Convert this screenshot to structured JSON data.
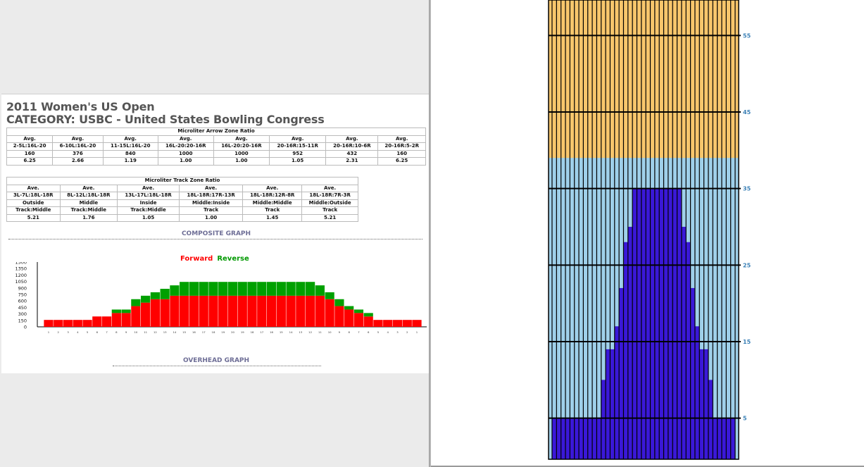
{
  "page": {
    "title": "2011 Women's US Open",
    "category": "CATEGORY: USBC - United States Bowling Congress"
  },
  "arrow_table": {
    "caption": "Microliter Arrow Zone Ratio",
    "columns": [
      {
        "head1": "Avg.",
        "head2": "2-5L:16L-20",
        "value": "160",
        "ratio": "6.25"
      },
      {
        "head1": "Avg.",
        "head2": "6-10L:16L-20",
        "value": "376",
        "ratio": "2.66"
      },
      {
        "head1": "Avg.",
        "head2": "11-15L:16L-20",
        "value": "840",
        "ratio": "1.19"
      },
      {
        "head1": "Avg.",
        "head2": "16L-20:20-16R",
        "value": "1000",
        "ratio": "1.00"
      },
      {
        "head1": "Avg.",
        "head2": "16L-20:20-16R",
        "value": "1000",
        "ratio": "1.00"
      },
      {
        "head1": "Avg.",
        "head2": "20-16R:15-11R",
        "value": "952",
        "ratio": "1.05"
      },
      {
        "head1": "Avg.",
        "head2": "20-16R:10-6R",
        "value": "432",
        "ratio": "2.31"
      },
      {
        "head1": "Avg.",
        "head2": "20-16R:5-2R",
        "value": "160",
        "ratio": "6.25"
      }
    ]
  },
  "track_table": {
    "caption": "Microliter Track Zone Ratio",
    "columns": [
      {
        "head1": "Ave.",
        "head2": "3L-7L:18L-18R",
        "zone1": "Outside",
        "zone2": "Track:Middle",
        "ratio": "5.21"
      },
      {
        "head1": "Ave.",
        "head2": "8L-12L:18L-18R",
        "zone1": "Middle",
        "zone2": "Track:Middle",
        "ratio": "1.76"
      },
      {
        "head1": "Ave.",
        "head2": "13L-17L:18L-18R",
        "zone1": "Inside",
        "zone2": "Track:Middle",
        "ratio": "1.05"
      },
      {
        "head1": "Ave.",
        "head2": "18L-18R:17R-13R",
        "zone1": "Middle:Inside",
        "zone2": "Track",
        "ratio": "1.00"
      },
      {
        "head1": "Ave.",
        "head2": "18L-18R:12R-8R",
        "zone1": "Middle:Middle",
        "zone2": "Track",
        "ratio": "1.45"
      },
      {
        "head1": "Ave.",
        "head2": "18L-18R:7R-3R",
        "zone1": "Middle:Outside",
        "zone2": "Track",
        "ratio": "5.21"
      }
    ]
  },
  "sections": {
    "composite": "COMPOSITE GRAPH",
    "overhead": "OVERHEAD GRAPH"
  },
  "legend": {
    "forward": "Forward",
    "reverse": "Reverse",
    "forward_color": "#ff0000",
    "reverse_color": "#00a000"
  },
  "chart_data": [
    {
      "type": "bar",
      "stacked": true,
      "categories": [
        "1",
        "2",
        "3",
        "4",
        "5",
        "6",
        "7",
        "8",
        "9",
        "10",
        "11",
        "12",
        "13",
        "14",
        "15",
        "16",
        "17",
        "18",
        "19",
        "20",
        "19",
        "18",
        "17",
        "16",
        "15",
        "14",
        "13",
        "12",
        "11",
        "10",
        "9",
        "8",
        "7",
        "6",
        "5",
        "4",
        "3",
        "2",
        "1"
      ],
      "series": [
        {
          "name": "Forward",
          "color": "#ff0000",
          "values": [
            160,
            160,
            160,
            160,
            160,
            240,
            240,
            320,
            320,
            480,
            560,
            640,
            640,
            720,
            720,
            720,
            720,
            720,
            720,
            720,
            720,
            720,
            720,
            720,
            720,
            720,
            720,
            720,
            720,
            640,
            480,
            400,
            320,
            240,
            160,
            160,
            160,
            160,
            160
          ]
        },
        {
          "name": "Reverse",
          "color": "#00a000",
          "values": [
            0,
            0,
            0,
            0,
            0,
            0,
            0,
            80,
            80,
            160,
            160,
            160,
            240,
            240,
            320,
            320,
            320,
            320,
            320,
            320,
            320,
            320,
            320,
            320,
            320,
            320,
            320,
            320,
            240,
            160,
            160,
            80,
            80,
            80,
            0,
            0,
            0,
            0,
            0
          ]
        }
      ],
      "y_ticks": [
        "1500",
        "1350",
        "1200",
        "1050",
        "900",
        "750",
        "600",
        "450",
        "300",
        "150",
        "0"
      ],
      "ylim": [
        0,
        1500
      ],
      "legend_position": "top-center"
    },
    {
      "type": "heatmap",
      "y_ticks": [
        "55",
        "45",
        "35",
        "25",
        "15",
        "5"
      ],
      "ylim": [
        0,
        60
      ],
      "columns": 41,
      "colors": {
        "dry": "#f8c66c",
        "conditioned": "#9fd0ea",
        "oil": "#3a18d8",
        "gridline": "#000000",
        "tick_label": "#3a80b6"
      },
      "conditioned_up_to_foot": 39,
      "oil_heights": [
        5,
        5,
        5,
        5,
        5,
        5,
        5,
        5,
        5,
        5,
        5,
        10,
        14,
        14,
        17,
        22,
        28,
        30,
        35,
        35,
        35,
        35,
        35,
        35,
        35,
        35,
        35,
        35,
        35,
        30,
        28,
        22,
        17,
        14,
        14,
        10,
        5,
        5,
        5,
        5,
        5
      ]
    }
  ]
}
